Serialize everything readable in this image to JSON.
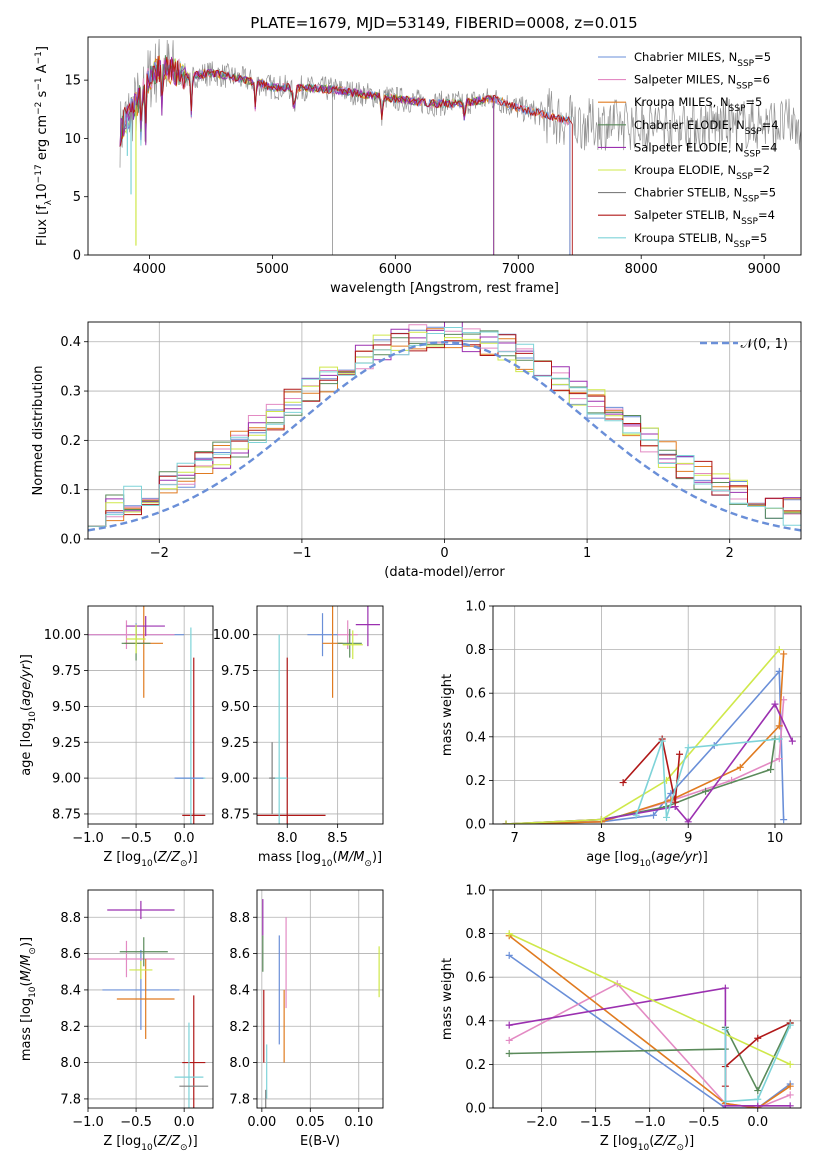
{
  "figure": {
    "title": "PLATE=1679, MJD=53149, FIBERID=0008, z=0.015"
  },
  "legend_labels": [
    "Chabrier MILES, N_SSP=5",
    "Salpeter MILES, N_SSP=6",
    "Kroupa MILES, N_SSP=5",
    "Chabrier ELODIE, N_SSP=4",
    "Salpeter ELODIE, N_SSP=4",
    "Kroupa ELODIE, N_SSP=2",
    "Chabrier STELIB, N_SSP=5",
    "Salpeter STELIB, N_SSP=4",
    "Kroupa STELIB, N_SSP=5"
  ],
  "colors": [
    "#6a8fd8",
    "#e38ac3",
    "#e07b20",
    "#5a8a5a",
    "#9b30b0",
    "#cfe84a",
    "#7f7f7f",
    "#b01818",
    "#7ed3d8"
  ],
  "chart_data": [
    {
      "id": "spectrum",
      "type": "line",
      "title": "PLATE=1679, MJD=53149, FIBERID=0008, z=0.015",
      "xlabel": "wavelength [Angstrom, rest frame]",
      "ylabel": "Flux [f_λ 10^-17 erg cm^-2 s^-1 A^-1]",
      "xlim": [
        3500,
        9300
      ],
      "ylim": [
        0,
        18.7
      ],
      "xticks": [
        4000,
        5000,
        6000,
        7000,
        8000,
        9000
      ],
      "yticks": [
        0,
        5,
        10,
        15
      ],
      "grid": false,
      "legend_placement": "top-right",
      "continuum": {
        "x": [
          3760,
          3800,
          3900,
          4000,
          4100,
          4300,
          4500,
          4800,
          5000,
          5300,
          5500,
          5800,
          6000,
          6300,
          6500,
          6800,
          7000,
          7300,
          7400
        ],
        "y": [
          10.5,
          11.5,
          13.0,
          15.2,
          16.2,
          15.3,
          15.6,
          15.0,
          14.4,
          14.3,
          14.2,
          13.7,
          13.4,
          13.0,
          13.0,
          13.4,
          12.6,
          11.8,
          11.5
        ]
      },
      "model_ends_angstrom": [
        7420,
        7420,
        7420,
        6800,
        6800,
        6800,
        9300,
        7440,
        7420
      ]
    },
    {
      "id": "residuals",
      "type": "line",
      "xlabel": "(data-model)/error",
      "ylabel": "Normed distribution",
      "xlim": [
        -2.5,
        2.5
      ],
      "ylim": [
        0,
        0.44
      ],
      "xticks": [
        -2,
        -1,
        0,
        1,
        2
      ],
      "yticks": [
        0.0,
        0.1,
        0.2,
        0.3,
        0.4
      ],
      "grid": true,
      "legend": "𝒩(0, 1)",
      "legend_placement": "top-right",
      "normal_curve": {
        "mean": 0,
        "sigma": 1
      }
    },
    {
      "id": "age-vs-Z",
      "type": "scatter",
      "xlabel": "Z [log10(Z/Z_sun)]",
      "ylabel": "age [log10(age/yr)]",
      "xlim": [
        -1.0,
        0.3
      ],
      "ylim": [
        8.68,
        10.2
      ],
      "xticks": [
        -1.0,
        -0.5,
        0.0
      ],
      "yticks": [
        8.75,
        9.0,
        9.25,
        9.5,
        9.75,
        10.0
      ],
      "grid": true,
      "errorbars": [
        {
          "series": 0,
          "x": -0.5,
          "y": 10.0,
          "xerr": 0.5,
          "yerr": 0.08
        },
        {
          "series": 1,
          "x": -0.6,
          "y": 10.0,
          "xerr": 0.5,
          "yerr": 0.1
        },
        {
          "series": 2,
          "x": -0.42,
          "y": 9.94,
          "xerr": 0.2,
          "yerr": 0.38
        },
        {
          "series": 3,
          "x": -0.5,
          "y": 9.94,
          "xerr": 0.15,
          "yerr": 0.12
        },
        {
          "series": 4,
          "x": -0.4,
          "y": 10.06,
          "xerr": 0.2,
          "yerr": 0.07
        },
        {
          "series": 5,
          "x": -0.5,
          "y": 9.97,
          "xerr": 0.1,
          "yerr": 0.1
        },
        {
          "series": 7,
          "x": 0.1,
          "y": 8.74,
          "xerr": 0.12,
          "yerr": 1.1
        },
        {
          "series": 8,
          "x": 0.07,
          "y": 9.0,
          "xerr": 0.15,
          "yerr": 1.05
        },
        {
          "series": 0,
          "x": 0.05,
          "y": 9.0,
          "xerr": 0.15,
          "yerr": 0.0
        }
      ]
    },
    {
      "id": "age-vs-mass",
      "type": "scatter",
      "xlabel": "mass [log10(M/M_sun)]",
      "ylabel": "",
      "xlim": [
        7.7,
        8.95
      ],
      "ylim": [
        8.68,
        10.2
      ],
      "xticks": [
        8.0,
        8.5
      ],
      "yticks": [
        8.75,
        9.0,
        9.25,
        9.5,
        9.75,
        10.0
      ],
      "grid": true,
      "errorbars": [
        {
          "series": 0,
          "x": 8.35,
          "y": 10.0,
          "xerr": 0.15,
          "yerr": 0.15
        },
        {
          "series": 1,
          "x": 8.6,
          "y": 10.0,
          "xerr": 0.1,
          "yerr": 0.1
        },
        {
          "series": 2,
          "x": 8.45,
          "y": 9.94,
          "xerr": 0.1,
          "yerr": 0.38
        },
        {
          "series": 3,
          "x": 8.62,
          "y": 9.94,
          "xerr": 0.12,
          "yerr": 0.1
        },
        {
          "series": 4,
          "x": 8.8,
          "y": 10.07,
          "xerr": 0.12,
          "yerr": 0.15
        },
        {
          "series": 5,
          "x": 8.65,
          "y": 9.93,
          "xerr": 0.1,
          "yerr": 0.1
        },
        {
          "series": 7,
          "x": 8.0,
          "y": 8.74,
          "xerr": 0.38,
          "yerr": 1.1
        },
        {
          "series": 8,
          "x": 7.92,
          "y": 9.0,
          "xerr": 0.08,
          "yerr": 1.0
        },
        {
          "series": 6,
          "x": 7.85,
          "y": 9.0,
          "xerr": 0.03,
          "yerr": 0.25
        }
      ]
    },
    {
      "id": "mass-weight-vs-age",
      "type": "line",
      "xlabel": "age [log10(age/yr)]",
      "ylabel": "mass weight",
      "xlim": [
        6.75,
        10.3
      ],
      "ylim": [
        0,
        1.0
      ],
      "xticks": [
        7,
        8,
        9,
        10
      ],
      "yticks": [
        0.0,
        0.2,
        0.4,
        0.6,
        0.8,
        1.0
      ],
      "grid": true,
      "series": [
        {
          "color_index": 0,
          "x": [
            6.9,
            8.0,
            8.6,
            8.8,
            9.3,
            10.05,
            10.1
          ],
          "y": [
            0.0,
            0.01,
            0.04,
            0.14,
            0.36,
            0.7,
            0.02
          ]
        },
        {
          "color_index": 1,
          "x": [
            6.9,
            8.0,
            8.75,
            9.5,
            10.05,
            10.1
          ],
          "y": [
            0.0,
            0.01,
            0.1,
            0.2,
            0.3,
            0.57
          ]
        },
        {
          "color_index": 2,
          "x": [
            6.9,
            8.0,
            8.8,
            9.6,
            10.05,
            10.1
          ],
          "y": [
            0.0,
            0.01,
            0.11,
            0.26,
            0.45,
            0.78
          ]
        },
        {
          "color_index": 3,
          "x": [
            6.9,
            8.0,
            8.75,
            9.2,
            9.95,
            10.0
          ],
          "y": [
            0.0,
            0.02,
            0.08,
            0.15,
            0.25,
            0.39
          ]
        },
        {
          "color_index": 4,
          "x": [
            6.9,
            8.0,
            8.85,
            9.0,
            10.0,
            10.2
          ],
          "y": [
            0.0,
            0.02,
            0.08,
            0.01,
            0.55,
            0.38
          ]
        },
        {
          "color_index": 5,
          "x": [
            6.9,
            8.0,
            8.75,
            10.05
          ],
          "y": [
            0.0,
            0.02,
            0.2,
            0.8
          ]
        },
        {
          "color_index": 7,
          "x": [
            8.25,
            8.7,
            8.85,
            8.9
          ],
          "y": [
            0.19,
            0.39,
            0.1,
            0.32
          ]
        },
        {
          "color_index": 8,
          "x": [
            8.4,
            8.7,
            8.75,
            9.0,
            10.05
          ],
          "y": [
            0.04,
            0.38,
            0.03,
            0.35,
            0.39
          ]
        }
      ]
    },
    {
      "id": "mass-vs-Z",
      "type": "scatter",
      "xlabel": "Z [log10(Z/Z_sun)]",
      "ylabel": "mass [log10(M/M_sun)]",
      "xlim": [
        -1.0,
        0.3
      ],
      "ylim": [
        7.75,
        8.95
      ],
      "xticks": [
        -1.0,
        -0.5,
        0.0
      ],
      "yticks": [
        7.8,
        8.0,
        8.2,
        8.4,
        8.6,
        8.8
      ],
      "grid": true,
      "errorbars": [
        {
          "series": 0,
          "x": -0.45,
          "y": 8.4,
          "xerr": 0.4,
          "yerr": 0.22
        },
        {
          "series": 1,
          "x": -0.6,
          "y": 8.57,
          "xerr": 0.5,
          "yerr": 0.1
        },
        {
          "series": 2,
          "x": -0.4,
          "y": 8.35,
          "xerr": 0.3,
          "yerr": 0.22
        },
        {
          "series": 3,
          "x": -0.42,
          "y": 8.61,
          "xerr": 0.25,
          "yerr": 0.08
        },
        {
          "series": 4,
          "x": -0.45,
          "y": 8.84,
          "xerr": 0.35,
          "yerr": 0.05
        },
        {
          "series": 5,
          "x": -0.45,
          "y": 8.51,
          "xerr": 0.12,
          "yerr": 0.05
        },
        {
          "series": 7,
          "x": 0.1,
          "y": 8.0,
          "xerr": 0.12,
          "yerr": 0.37
        },
        {
          "series": 8,
          "x": 0.05,
          "y": 7.92,
          "xerr": 0.15,
          "yerr": 0.3
        },
        {
          "series": 6,
          "x": 0.1,
          "y": 7.87,
          "xerr": 0.15,
          "yerr": 0.0
        }
      ]
    },
    {
      "id": "mass-vs-ebv",
      "type": "scatter",
      "xlabel": "E(B-V)",
      "ylabel": "",
      "xlim": [
        -0.005,
        0.125
      ],
      "ylim": [
        7.75,
        8.95
      ],
      "xticks": [
        0.0,
        0.05,
        0.1
      ],
      "yticks": [
        7.8,
        8.0,
        8.2,
        8.4,
        8.6,
        8.8
      ],
      "grid": true,
      "errorbars": [
        {
          "series": 0,
          "x": 0.018,
          "y": 8.4,
          "xerr": 0.0,
          "yerr": 0.3
        },
        {
          "series": 1,
          "x": 0.025,
          "y": 8.55,
          "xerr": 0.0,
          "yerr": 0.25
        },
        {
          "series": 2,
          "x": 0.023,
          "y": 8.2,
          "xerr": 0.0,
          "yerr": 0.2
        },
        {
          "series": 3,
          "x": 0.001,
          "y": 8.6,
          "xerr": 0.0,
          "yerr": 0.1
        },
        {
          "series": 4,
          "x": 0.001,
          "y": 8.8,
          "xerr": 0.0,
          "yerr": 0.1
        },
        {
          "series": 5,
          "x": 0.121,
          "y": 8.5,
          "xerr": 0.0,
          "yerr": 0.14
        },
        {
          "series": 7,
          "x": 0.002,
          "y": 8.2,
          "xerr": 0.0,
          "yerr": 0.2
        },
        {
          "series": 8,
          "x": 0.005,
          "y": 7.95,
          "xerr": 0.0,
          "yerr": 0.15
        },
        {
          "series": 6,
          "x": 0.004,
          "y": 7.8,
          "xerr": 0.0,
          "yerr": 0.05
        }
      ]
    },
    {
      "id": "mass-weight-vs-Z",
      "type": "line",
      "xlabel": "Z [log10(Z/Z_sun)]",
      "ylabel": "mass weight",
      "xlim": [
        -2.45,
        0.4
      ],
      "ylim": [
        0,
        1.0
      ],
      "xticks": [
        -2.0,
        -1.5,
        -1.0,
        -0.5,
        0.0
      ],
      "yticks": [
        0.0,
        0.2,
        0.4,
        0.6,
        0.8,
        1.0
      ],
      "grid": true,
      "series": [
        {
          "color_index": 0,
          "x": [
            -2.3,
            -0.3,
            0.0,
            0.3
          ],
          "y": [
            0.7,
            0.0,
            0.0,
            0.11
          ]
        },
        {
          "color_index": 1,
          "x": [
            -2.3,
            -1.3,
            -0.3,
            0.0,
            0.3
          ],
          "y": [
            0.31,
            0.57,
            0.02,
            0.0,
            0.06
          ]
        },
        {
          "color_index": 2,
          "x": [
            -2.3,
            -0.3,
            0.0,
            0.3
          ],
          "y": [
            0.79,
            0.02,
            0.0,
            0.1
          ]
        },
        {
          "color_index": 3,
          "x": [
            -2.3,
            -0.3,
            -0.3,
            0.0,
            0.3
          ],
          "y": [
            0.25,
            0.27,
            0.37,
            0.08,
            0.39
          ]
        },
        {
          "color_index": 4,
          "x": [
            -2.3,
            -0.3,
            -0.3,
            0.0,
            0.3
          ],
          "y": [
            0.38,
            0.55,
            0.01,
            0.01,
            0.01
          ]
        },
        {
          "color_index": 5,
          "x": [
            -2.3,
            0.3
          ],
          "y": [
            0.8,
            0.2
          ]
        },
        {
          "color_index": 7,
          "x": [
            -0.3,
            -0.3,
            0.0,
            0.3
          ],
          "y": [
            0.1,
            0.19,
            0.32,
            0.39
          ]
        },
        {
          "color_index": 8,
          "x": [
            -0.3,
            -0.3,
            0.0,
            0.3
          ],
          "y": [
            0.36,
            0.03,
            0.04,
            0.38
          ]
        }
      ]
    }
  ]
}
